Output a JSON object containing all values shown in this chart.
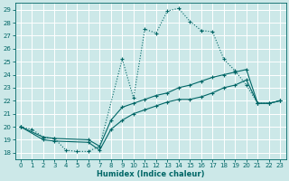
{
  "title": "",
  "xlabel": "Humidex (Indice chaleur)",
  "bg_color": "#cce8e8",
  "grid_color": "#ffffff",
  "line_color": "#006666",
  "xlim": [
    -0.5,
    23.5
  ],
  "ylim": [
    17.5,
    29.5
  ],
  "xticks": [
    0,
    1,
    2,
    3,
    4,
    5,
    6,
    7,
    8,
    9,
    10,
    11,
    12,
    13,
    14,
    15,
    16,
    17,
    18,
    19,
    20,
    21,
    22,
    23
  ],
  "yticks": [
    18,
    19,
    20,
    21,
    22,
    23,
    24,
    25,
    26,
    27,
    28,
    29
  ],
  "curve1_x": [
    0,
    1,
    2,
    3,
    4,
    5,
    6,
    7,
    9,
    10,
    11,
    12,
    13,
    14,
    15,
    16,
    17,
    18,
    19,
    20,
    21,
    22,
    23
  ],
  "curve1_y": [
    20,
    19.8,
    19.2,
    19.1,
    18.2,
    18.1,
    18.1,
    18.5,
    25.2,
    22.2,
    27.5,
    27.2,
    28.9,
    29.1,
    28.1,
    27.4,
    27.3,
    25.2,
    24.3,
    23.2,
    21.8,
    21.8,
    22.0
  ],
  "curve1_style": "dotted",
  "curve2_x": [
    0,
    2,
    3,
    6,
    7,
    8,
    9,
    10,
    11,
    12,
    13,
    14,
    15,
    16,
    17,
    18,
    19,
    20,
    21,
    22,
    23
  ],
  "curve2_y": [
    20,
    19.2,
    19.1,
    19.0,
    18.5,
    20.5,
    21.5,
    21.8,
    22.1,
    22.4,
    22.6,
    23.0,
    23.2,
    23.5,
    23.8,
    24.0,
    24.2,
    24.4,
    21.8,
    21.8,
    22.0
  ],
  "curve2_style": "solid",
  "curve3_x": [
    0,
    2,
    3,
    6,
    7,
    8,
    9,
    10,
    11,
    12,
    13,
    14,
    15,
    16,
    17,
    18,
    19,
    20,
    21,
    22,
    23
  ],
  "curve3_y": [
    20,
    19.0,
    18.9,
    18.8,
    18.2,
    19.8,
    20.5,
    21.0,
    21.3,
    21.6,
    21.9,
    22.1,
    22.1,
    22.3,
    22.6,
    23.0,
    23.2,
    23.6,
    21.8,
    21.8,
    22.0
  ],
  "curve3_style": "solid"
}
